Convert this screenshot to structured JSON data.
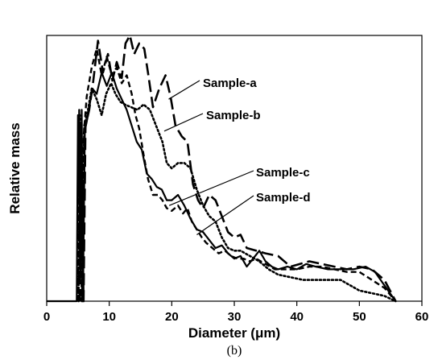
{
  "chart_data": {
    "type": "line",
    "xlabel": "Diameter (μm)",
    "ylabel": "Relative mass",
    "caption": "(b)",
    "xlim": [
      0,
      60
    ],
    "ylim": [
      0,
      1
    ],
    "x_ticks": [
      "0",
      "10",
      "20",
      "30",
      "40",
      "50",
      "60"
    ],
    "y_ticks_shown": false,
    "grid": false,
    "legend_style": "callout labels with leader lines",
    "series": [
      {
        "name": "Sample-a",
        "style": "long-dash",
        "points": [
          [
            5.3,
            0
          ],
          [
            5.5,
            0.67
          ],
          [
            5.9,
            0
          ],
          [
            6.2,
            0.66
          ],
          [
            6.8,
            0.72
          ],
          [
            7.4,
            0.82
          ],
          [
            8.2,
            0.98
          ],
          [
            9.0,
            0.86
          ],
          [
            9.8,
            0.93
          ],
          [
            10.5,
            0.83
          ],
          [
            11.2,
            0.9
          ],
          [
            12.0,
            0.84
          ],
          [
            12.6,
            0.97
          ],
          [
            13.3,
            1.0
          ],
          [
            14.0,
            0.93
          ],
          [
            14.8,
            0.97
          ],
          [
            15.6,
            0.95
          ],
          [
            16.2,
            0.86
          ],
          [
            17.0,
            0.73
          ],
          [
            18.0,
            0.8
          ],
          [
            19.0,
            0.85
          ],
          [
            19.8,
            0.77
          ],
          [
            20.6,
            0.66
          ],
          [
            21.6,
            0.62
          ],
          [
            22.5,
            0.6
          ],
          [
            23.4,
            0.44
          ],
          [
            24.2,
            0.38
          ],
          [
            25.0,
            0.35
          ],
          [
            26.0,
            0.4
          ],
          [
            27.0,
            0.38
          ],
          [
            28.0,
            0.32
          ],
          [
            29.0,
            0.26
          ],
          [
            30.0,
            0.24
          ],
          [
            31.0,
            0.25
          ],
          [
            32.0,
            0.2
          ],
          [
            33.5,
            0.19
          ],
          [
            35.0,
            0.18
          ],
          [
            37.0,
            0.17
          ],
          [
            39.0,
            0.13
          ],
          [
            40.5,
            0.14
          ],
          [
            42.0,
            0.15
          ],
          [
            44.0,
            0.14
          ],
          [
            46.0,
            0.13
          ],
          [
            48.0,
            0.12
          ],
          [
            50.0,
            0.13
          ],
          [
            52.0,
            0.12
          ],
          [
            54.0,
            0.08
          ],
          [
            55.8,
            0
          ]
        ]
      },
      {
        "name": "Sample-b",
        "style": "dotted",
        "points": [
          [
            5.1,
            0
          ],
          [
            5.3,
            0.7
          ],
          [
            5.7,
            0
          ],
          [
            6.0,
            0.66
          ],
          [
            6.6,
            0.72
          ],
          [
            7.2,
            0.8
          ],
          [
            8.0,
            0.76
          ],
          [
            8.8,
            0.7
          ],
          [
            9.5,
            0.78
          ],
          [
            10.3,
            0.82
          ],
          [
            11.0,
            0.78
          ],
          [
            11.8,
            0.75
          ],
          [
            12.5,
            0.74
          ],
          [
            13.5,
            0.73
          ],
          [
            14.5,
            0.72
          ],
          [
            15.5,
            0.74
          ],
          [
            16.5,
            0.72
          ],
          [
            17.5,
            0.66
          ],
          [
            18.5,
            0.6
          ],
          [
            19.2,
            0.52
          ],
          [
            20.0,
            0.5
          ],
          [
            21.0,
            0.52
          ],
          [
            22.0,
            0.52
          ],
          [
            23.0,
            0.5
          ],
          [
            24.0,
            0.42
          ],
          [
            25.0,
            0.36
          ],
          [
            26.0,
            0.32
          ],
          [
            27.0,
            0.3
          ],
          [
            28.0,
            0.24
          ],
          [
            29.0,
            0.2
          ],
          [
            30.0,
            0.19
          ],
          [
            31.0,
            0.19
          ],
          [
            32.5,
            0.17
          ],
          [
            34.0,
            0.15
          ],
          [
            35.5,
            0.12
          ],
          [
            37.0,
            0.1
          ],
          [
            39.0,
            0.09
          ],
          [
            41.0,
            0.08
          ],
          [
            43.0,
            0.08
          ],
          [
            45.0,
            0.08
          ],
          [
            47.0,
            0.08
          ],
          [
            48.5,
            0.06
          ],
          [
            50.0,
            0.04
          ],
          [
            52.0,
            0.03
          ],
          [
            54.0,
            0.02
          ],
          [
            55.8,
            0
          ]
        ]
      },
      {
        "name": "Sample-c",
        "style": "short-dash",
        "points": [
          [
            5.0,
            0
          ],
          [
            5.2,
            0.72
          ],
          [
            5.6,
            0
          ],
          [
            5.9,
            0.62
          ],
          [
            6.4,
            0.77
          ],
          [
            7.2,
            0.88
          ],
          [
            8.0,
            0.95
          ],
          [
            8.8,
            0.85
          ],
          [
            9.6,
            0.92
          ],
          [
            10.4,
            0.85
          ],
          [
            11.2,
            0.88
          ],
          [
            12.0,
            0.82
          ],
          [
            12.8,
            0.85
          ],
          [
            13.6,
            0.78
          ],
          [
            14.2,
            0.7
          ],
          [
            14.8,
            0.65
          ],
          [
            15.5,
            0.55
          ],
          [
            16.2,
            0.46
          ],
          [
            17.0,
            0.4
          ],
          [
            17.8,
            0.4
          ],
          [
            18.5,
            0.38
          ],
          [
            19.2,
            0.35
          ],
          [
            20.0,
            0.34
          ],
          [
            21.0,
            0.36
          ],
          [
            21.8,
            0.33
          ],
          [
            22.5,
            0.35
          ],
          [
            23.2,
            0.3
          ],
          [
            24.0,
            0.27
          ],
          [
            24.8,
            0.24
          ],
          [
            25.5,
            0.22
          ],
          [
            26.5,
            0.2
          ],
          [
            27.5,
            0.18
          ],
          [
            28.5,
            0.19
          ],
          [
            29.5,
            0.17
          ],
          [
            30.5,
            0.16
          ],
          [
            31.5,
            0.16
          ],
          [
            32.5,
            0.15
          ],
          [
            33.5,
            0.16
          ],
          [
            35.0,
            0.14
          ],
          [
            36.5,
            0.12
          ],
          [
            38.0,
            0.12
          ],
          [
            40.0,
            0.12
          ],
          [
            42.0,
            0.13
          ],
          [
            44.0,
            0.13
          ],
          [
            46.0,
            0.12
          ],
          [
            48.0,
            0.11
          ],
          [
            50.0,
            0.11
          ],
          [
            52.0,
            0.08
          ],
          [
            54.0,
            0.05
          ],
          [
            55.8,
            0
          ]
        ]
      },
      {
        "name": "Sample-d",
        "style": "solid",
        "points": [
          [
            0,
            0
          ],
          [
            4.8,
            0
          ],
          [
            5.0,
            0.7
          ],
          [
            5.4,
            0.1
          ],
          [
            5.6,
            0.72
          ],
          [
            5.8,
            0
          ],
          [
            6.1,
            0.64
          ],
          [
            6.6,
            0.7
          ],
          [
            7.3,
            0.8
          ],
          [
            8.0,
            0.78
          ],
          [
            8.8,
            0.86
          ],
          [
            9.6,
            0.81
          ],
          [
            10.4,
            0.86
          ],
          [
            11.2,
            0.8
          ],
          [
            12.0,
            0.76
          ],
          [
            12.8,
            0.72
          ],
          [
            13.6,
            0.66
          ],
          [
            14.4,
            0.6
          ],
          [
            15.2,
            0.57
          ],
          [
            16.0,
            0.48
          ],
          [
            16.8,
            0.46
          ],
          [
            17.6,
            0.43
          ],
          [
            18.4,
            0.42
          ],
          [
            19.2,
            0.38
          ],
          [
            20.0,
            0.38
          ],
          [
            21.0,
            0.4
          ],
          [
            22.0,
            0.36
          ],
          [
            23.0,
            0.31
          ],
          [
            24.0,
            0.27
          ],
          [
            25.0,
            0.26
          ],
          [
            26.0,
            0.23
          ],
          [
            27.0,
            0.2
          ],
          [
            28.0,
            0.21
          ],
          [
            29.0,
            0.18
          ],
          [
            30.0,
            0.16
          ],
          [
            31.0,
            0.17
          ],
          [
            32.0,
            0.13
          ],
          [
            33.0,
            0.16
          ],
          [
            34.0,
            0.19
          ],
          [
            35.0,
            0.15
          ],
          [
            36.0,
            0.13
          ],
          [
            37.0,
            0.12
          ],
          [
            38.5,
            0.13
          ],
          [
            40.0,
            0.12
          ],
          [
            41.5,
            0.14
          ],
          [
            43.0,
            0.13
          ],
          [
            45.0,
            0.12
          ],
          [
            47.0,
            0.12
          ],
          [
            49.0,
            0.12
          ],
          [
            51.0,
            0.13
          ],
          [
            52.5,
            0.11
          ],
          [
            54.0,
            0.06
          ],
          [
            55.8,
            0
          ]
        ]
      }
    ],
    "callouts": [
      {
        "series": "Sample-a",
        "label": "Sample-a",
        "anchor_x": 19.5,
        "anchor_y": 0.76
      },
      {
        "series": "Sample-b",
        "label": "Sample-b",
        "anchor_x": 18.8,
        "anchor_y": 0.64
      },
      {
        "series": "Sample-c",
        "label": "Sample-c",
        "anchor_x": 19.6,
        "anchor_y": 0.36
      },
      {
        "series": "Sample-d",
        "label": "Sample-d",
        "anchor_x": 24.0,
        "anchor_y": 0.25
      }
    ]
  }
}
